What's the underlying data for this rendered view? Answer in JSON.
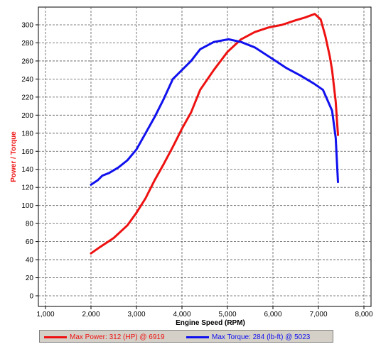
{
  "chart_data": {
    "type": "line",
    "xlabel": "Engine Speed (RPM)",
    "ylabel": "Power / Torque",
    "xlim": [
      1000,
      8000
    ],
    "ylim": [
      0,
      300
    ],
    "x_ticks": [
      "1,000",
      "2,000",
      "3,000",
      "4,000",
      "5,000",
      "6,000",
      "7,000",
      "8,000"
    ],
    "y_ticks": [
      "0",
      "20",
      "40",
      "60",
      "80",
      "100",
      "120",
      "140",
      "160",
      "180",
      "200",
      "220",
      "240",
      "260",
      "280",
      "300"
    ],
    "grid": true,
    "legend_position": "bottom",
    "series": [
      {
        "name": "Max Power: 312 (HP) @ 6919",
        "color": "#ee1111",
        "x": [
          2000,
          2200,
          2500,
          2800,
          3000,
          3200,
          3400,
          3600,
          3800,
          4000,
          4200,
          4400,
          4700,
          5000,
          5300,
          5600,
          5900,
          6200,
          6500,
          6700,
          6919,
          7050,
          7150,
          7250,
          7300,
          7380,
          7430
        ],
        "y": [
          47,
          54,
          64,
          78,
          92,
          108,
          128,
          146,
          165,
          185,
          203,
          228,
          250,
          270,
          284,
          292,
          297,
          300,
          305,
          308,
          312,
          306,
          288,
          265,
          250,
          215,
          178
        ]
      },
      {
        "name": "Max Torque: 284 (lb-ft) @ 5023",
        "color": "#1111ee",
        "x": [
          2000,
          2150,
          2250,
          2400,
          2600,
          2800,
          3000,
          3200,
          3400,
          3600,
          3800,
          4000,
          4200,
          4400,
          4700,
          5023,
          5300,
          5600,
          6000,
          6300,
          6600,
          6900,
          7100,
          7300,
          7380,
          7430
        ],
        "y": [
          123,
          128,
          133,
          136,
          142,
          150,
          162,
          180,
          198,
          218,
          240,
          250,
          260,
          273,
          281,
          284,
          281,
          275,
          262,
          252,
          244,
          235,
          228,
          205,
          175,
          126
        ]
      }
    ]
  }
}
